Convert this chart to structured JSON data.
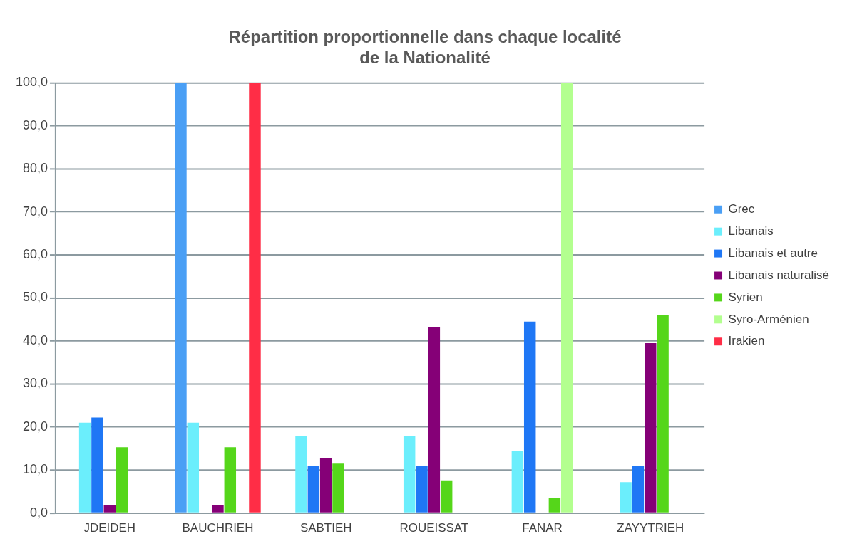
{
  "chart_data": {
    "type": "bar",
    "title": [
      "Répartition proportionnelle dans chaque localité",
      "de la Nationalité"
    ],
    "categories": [
      "JDEIDEH",
      "BAUCHRIEH",
      "SABTIEH",
      "ROUEISSAT",
      "FANAR",
      "ZAYYTRIEH"
    ],
    "series": [
      {
        "name": "Grec",
        "color": "#4a9ff5",
        "values": [
          0,
          100,
          0,
          0,
          0,
          0
        ]
      },
      {
        "name": "Libanais",
        "color": "#6beefc",
        "values": [
          21,
          21,
          18,
          18,
          14.4,
          7.2
        ]
      },
      {
        "name": "Libanais et autre",
        "color": "#1f77f5",
        "values": [
          22.2,
          0,
          11,
          11,
          44.5,
          11
        ]
      },
      {
        "name": "Libanais naturalisé",
        "color": "#850077",
        "values": [
          1.8,
          1.8,
          12.8,
          43.2,
          0,
          39.5
        ]
      },
      {
        "name": "Syrien",
        "color": "#55d61a",
        "values": [
          15.3,
          15.3,
          11.5,
          7.6,
          3.6,
          46
        ]
      },
      {
        "name": "Syro-Arménien",
        "color": "#b3ff8f",
        "values": [
          0,
          0,
          0,
          0,
          100,
          0
        ]
      },
      {
        "name": "Irakien",
        "color": "#ff2d46",
        "values": [
          0,
          100,
          0,
          0,
          0,
          0
        ]
      }
    ],
    "ylim": [
      0,
      100
    ],
    "yticks": [
      {
        "value": 0,
        "label": "0,0"
      },
      {
        "value": 10,
        "label": "10,0"
      },
      {
        "value": 20,
        "label": "20,0"
      },
      {
        "value": 30,
        "label": "30,0"
      },
      {
        "value": 40,
        "label": "40,0"
      },
      {
        "value": 50,
        "label": "50,0"
      },
      {
        "value": 60,
        "label": "60,0"
      },
      {
        "value": 70,
        "label": "70,0"
      },
      {
        "value": 80,
        "label": "80,0"
      },
      {
        "value": 90,
        "label": "90,0"
      },
      {
        "value": 100,
        "label": "100,0"
      }
    ],
    "grid": "y",
    "legend": "right"
  }
}
